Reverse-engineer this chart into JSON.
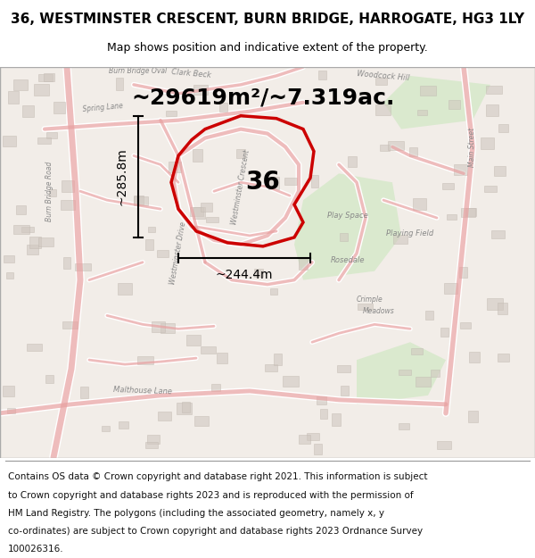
{
  "title_line1": "36, WESTMINSTER CRESCENT, BURN BRIDGE, HARROGATE, HG3 1LY",
  "title_line2": "Map shows position and indicative extent of the property.",
  "area_text": "~29619m²/~7.319ac.",
  "label_36": "36",
  "dim_vertical": "~285.8m",
  "dim_horizontal": "~244.4m",
  "footer_text": "Contains OS data © Crown copyright and database right 2021. This information is subject to Crown copyright and database rights 2023 and is reproduced with the permission of HM Land Registry. The polygons (including the associated geometry, namely x, y co-ordinates) are subject to Crown copyright and database rights 2023 Ordnance Survey 100026316.",
  "background_color": "#f5f0eb",
  "map_bg_color": "#f5f0eb",
  "road_color": "#e8a0a0",
  "road_outline_color": "#ffffff",
  "property_color": "#cc0000",
  "green_area_color": "#d4e8c8",
  "title_fontsize": 11,
  "subtitle_fontsize": 9,
  "area_fontsize": 18,
  "dim_fontsize": 10,
  "label_fontsize": 20,
  "footer_fontsize": 7.5,
  "fig_width": 6.0,
  "fig_height": 6.25
}
